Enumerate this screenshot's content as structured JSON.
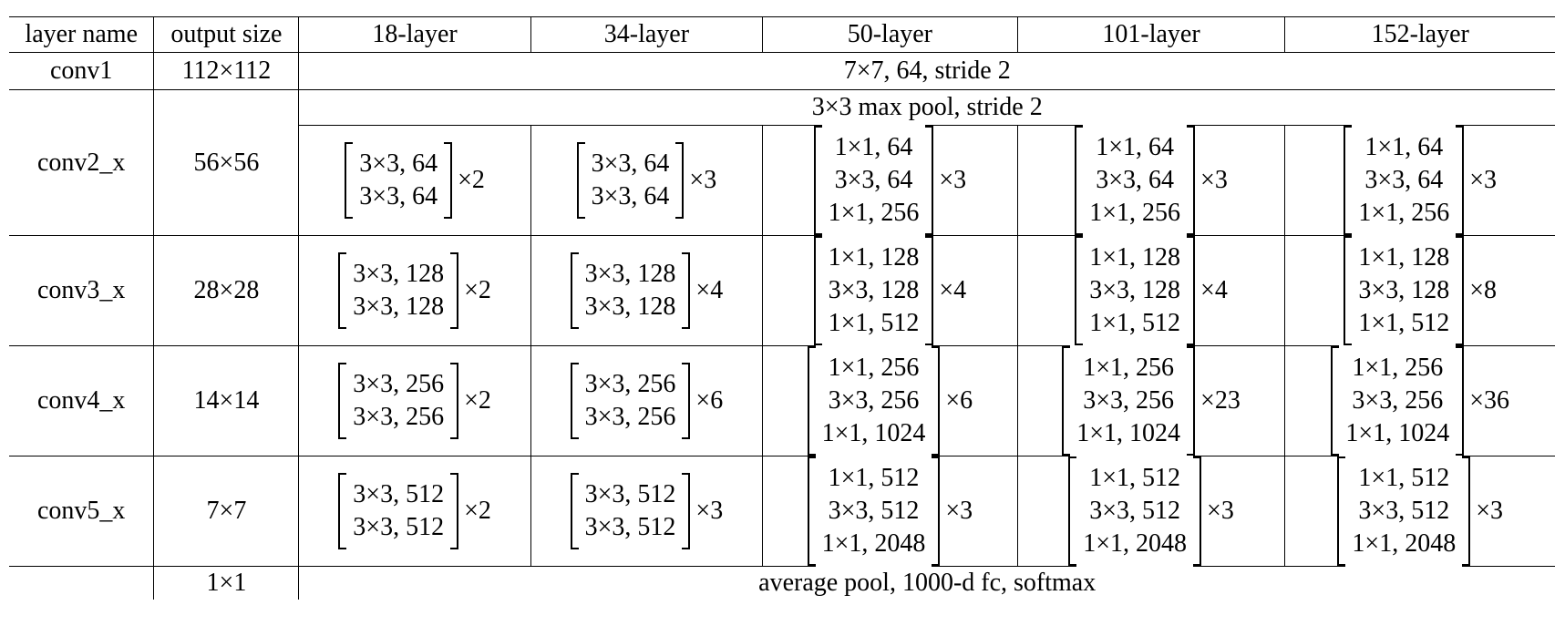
{
  "header": [
    "layer name",
    "output size",
    "18-layer",
    "34-layer",
    "50-layer",
    "101-layer",
    "152-layer"
  ],
  "conv1": {
    "name": "conv1",
    "size": "112×112",
    "desc": "7×7, 64, stride 2"
  },
  "pool": {
    "desc": "3×3 max pool, stride 2"
  },
  "stages": [
    {
      "name": "conv2_x",
      "size": "56×56",
      "blocks": [
        {
          "lines": [
            "3×3, 64",
            "3×3, 64"
          ],
          "repeat": "×2"
        },
        {
          "lines": [
            "3×3, 64",
            "3×3, 64"
          ],
          "repeat": "×3"
        },
        {
          "lines": [
            "1×1, 64",
            "3×3, 64",
            "1×1, 256"
          ],
          "repeat": "×3"
        },
        {
          "lines": [
            "1×1, 64",
            "3×3, 64",
            "1×1, 256"
          ],
          "repeat": "×3"
        },
        {
          "lines": [
            "1×1, 64",
            "3×3, 64",
            "1×1, 256"
          ],
          "repeat": "×3"
        }
      ]
    },
    {
      "name": "conv3_x",
      "size": "28×28",
      "blocks": [
        {
          "lines": [
            "3×3, 128",
            "3×3, 128"
          ],
          "repeat": "×2"
        },
        {
          "lines": [
            "3×3, 128",
            "3×3, 128"
          ],
          "repeat": "×4"
        },
        {
          "lines": [
            "1×1, 128",
            "3×3, 128",
            "1×1, 512"
          ],
          "repeat": "×4"
        },
        {
          "lines": [
            "1×1, 128",
            "3×3, 128",
            "1×1, 512"
          ],
          "repeat": "×4"
        },
        {
          "lines": [
            "1×1, 128",
            "3×3, 128",
            "1×1, 512"
          ],
          "repeat": "×8"
        }
      ]
    },
    {
      "name": "conv4_x",
      "size": "14×14",
      "blocks": [
        {
          "lines": [
            "3×3, 256",
            "3×3, 256"
          ],
          "repeat": "×2"
        },
        {
          "lines": [
            "3×3, 256",
            "3×3, 256"
          ],
          "repeat": "×6"
        },
        {
          "lines": [
            "1×1, 256",
            "3×3, 256",
            "1×1, 1024"
          ],
          "repeat": "×6"
        },
        {
          "lines": [
            "1×1, 256",
            "3×3, 256",
            "1×1, 1024"
          ],
          "repeat": "×23"
        },
        {
          "lines": [
            "1×1, 256",
            "3×3, 256",
            "1×1, 1024"
          ],
          "repeat": "×36"
        }
      ]
    },
    {
      "name": "conv5_x",
      "size": "7×7",
      "blocks": [
        {
          "lines": [
            "3×3, 512",
            "3×3, 512"
          ],
          "repeat": "×2"
        },
        {
          "lines": [
            "3×3, 512",
            "3×3, 512"
          ],
          "repeat": "×3"
        },
        {
          "lines": [
            "1×1, 512",
            "3×3, 512",
            "1×1, 2048"
          ],
          "repeat": "×3"
        },
        {
          "lines": [
            "1×1, 512",
            "3×3, 512",
            "1×1, 2048"
          ],
          "repeat": "×3"
        },
        {
          "lines": [
            "1×1, 512",
            "3×3, 512",
            "1×1, 2048"
          ],
          "repeat": "×3"
        }
      ]
    }
  ],
  "final": {
    "size": "1×1",
    "desc": "average pool, 1000-d fc, softmax"
  }
}
